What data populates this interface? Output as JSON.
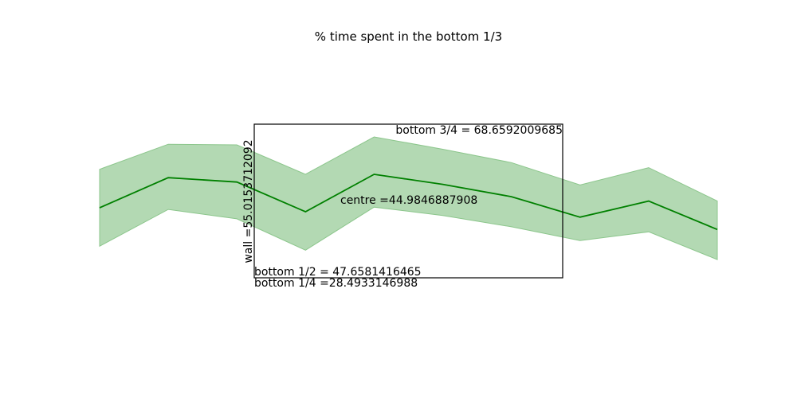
{
  "chart_data": {
    "type": "area",
    "title": "% time spent in the bottom 1/3",
    "xlabel": "",
    "ylabel": "",
    "axes_visible": false,
    "grid": false,
    "x": [
      0,
      1,
      2,
      3,
      4,
      5,
      6,
      7,
      8,
      9
    ],
    "ylim": [
      0,
      100
    ],
    "series": [
      {
        "values": [
          45,
          54,
          52.7,
          43.8,
          55,
          52,
          48.3,
          42.2,
          47,
          38.5
        ],
        "band_upper": [
          56.5,
          64,
          63.8,
          55,
          66.2,
          62.5,
          58.5,
          51.8,
          57,
          47
        ],
        "band_lower": [
          33.5,
          44.5,
          41.7,
          32.3,
          45.2,
          42.7,
          39.3,
          35.2,
          37.8,
          29.5
        ],
        "line_color": "#008000",
        "band_color": "#b3d9b3"
      }
    ],
    "annotations": {
      "box": {
        "left": "wall =55.0153712092",
        "right": "bottom 3/4 = 68.6592009685"
      },
      "top_label": "bottom 3/4 = 68.6592009685",
      "centre_label": "centre =44.9846887908",
      "wall_label": "wall =55.0153712092",
      "bottom_half_label": "bottom 1/2 = 47.6581416465",
      "bottom_quarter_label": "bottom 1/4 =28.4933146988"
    }
  }
}
